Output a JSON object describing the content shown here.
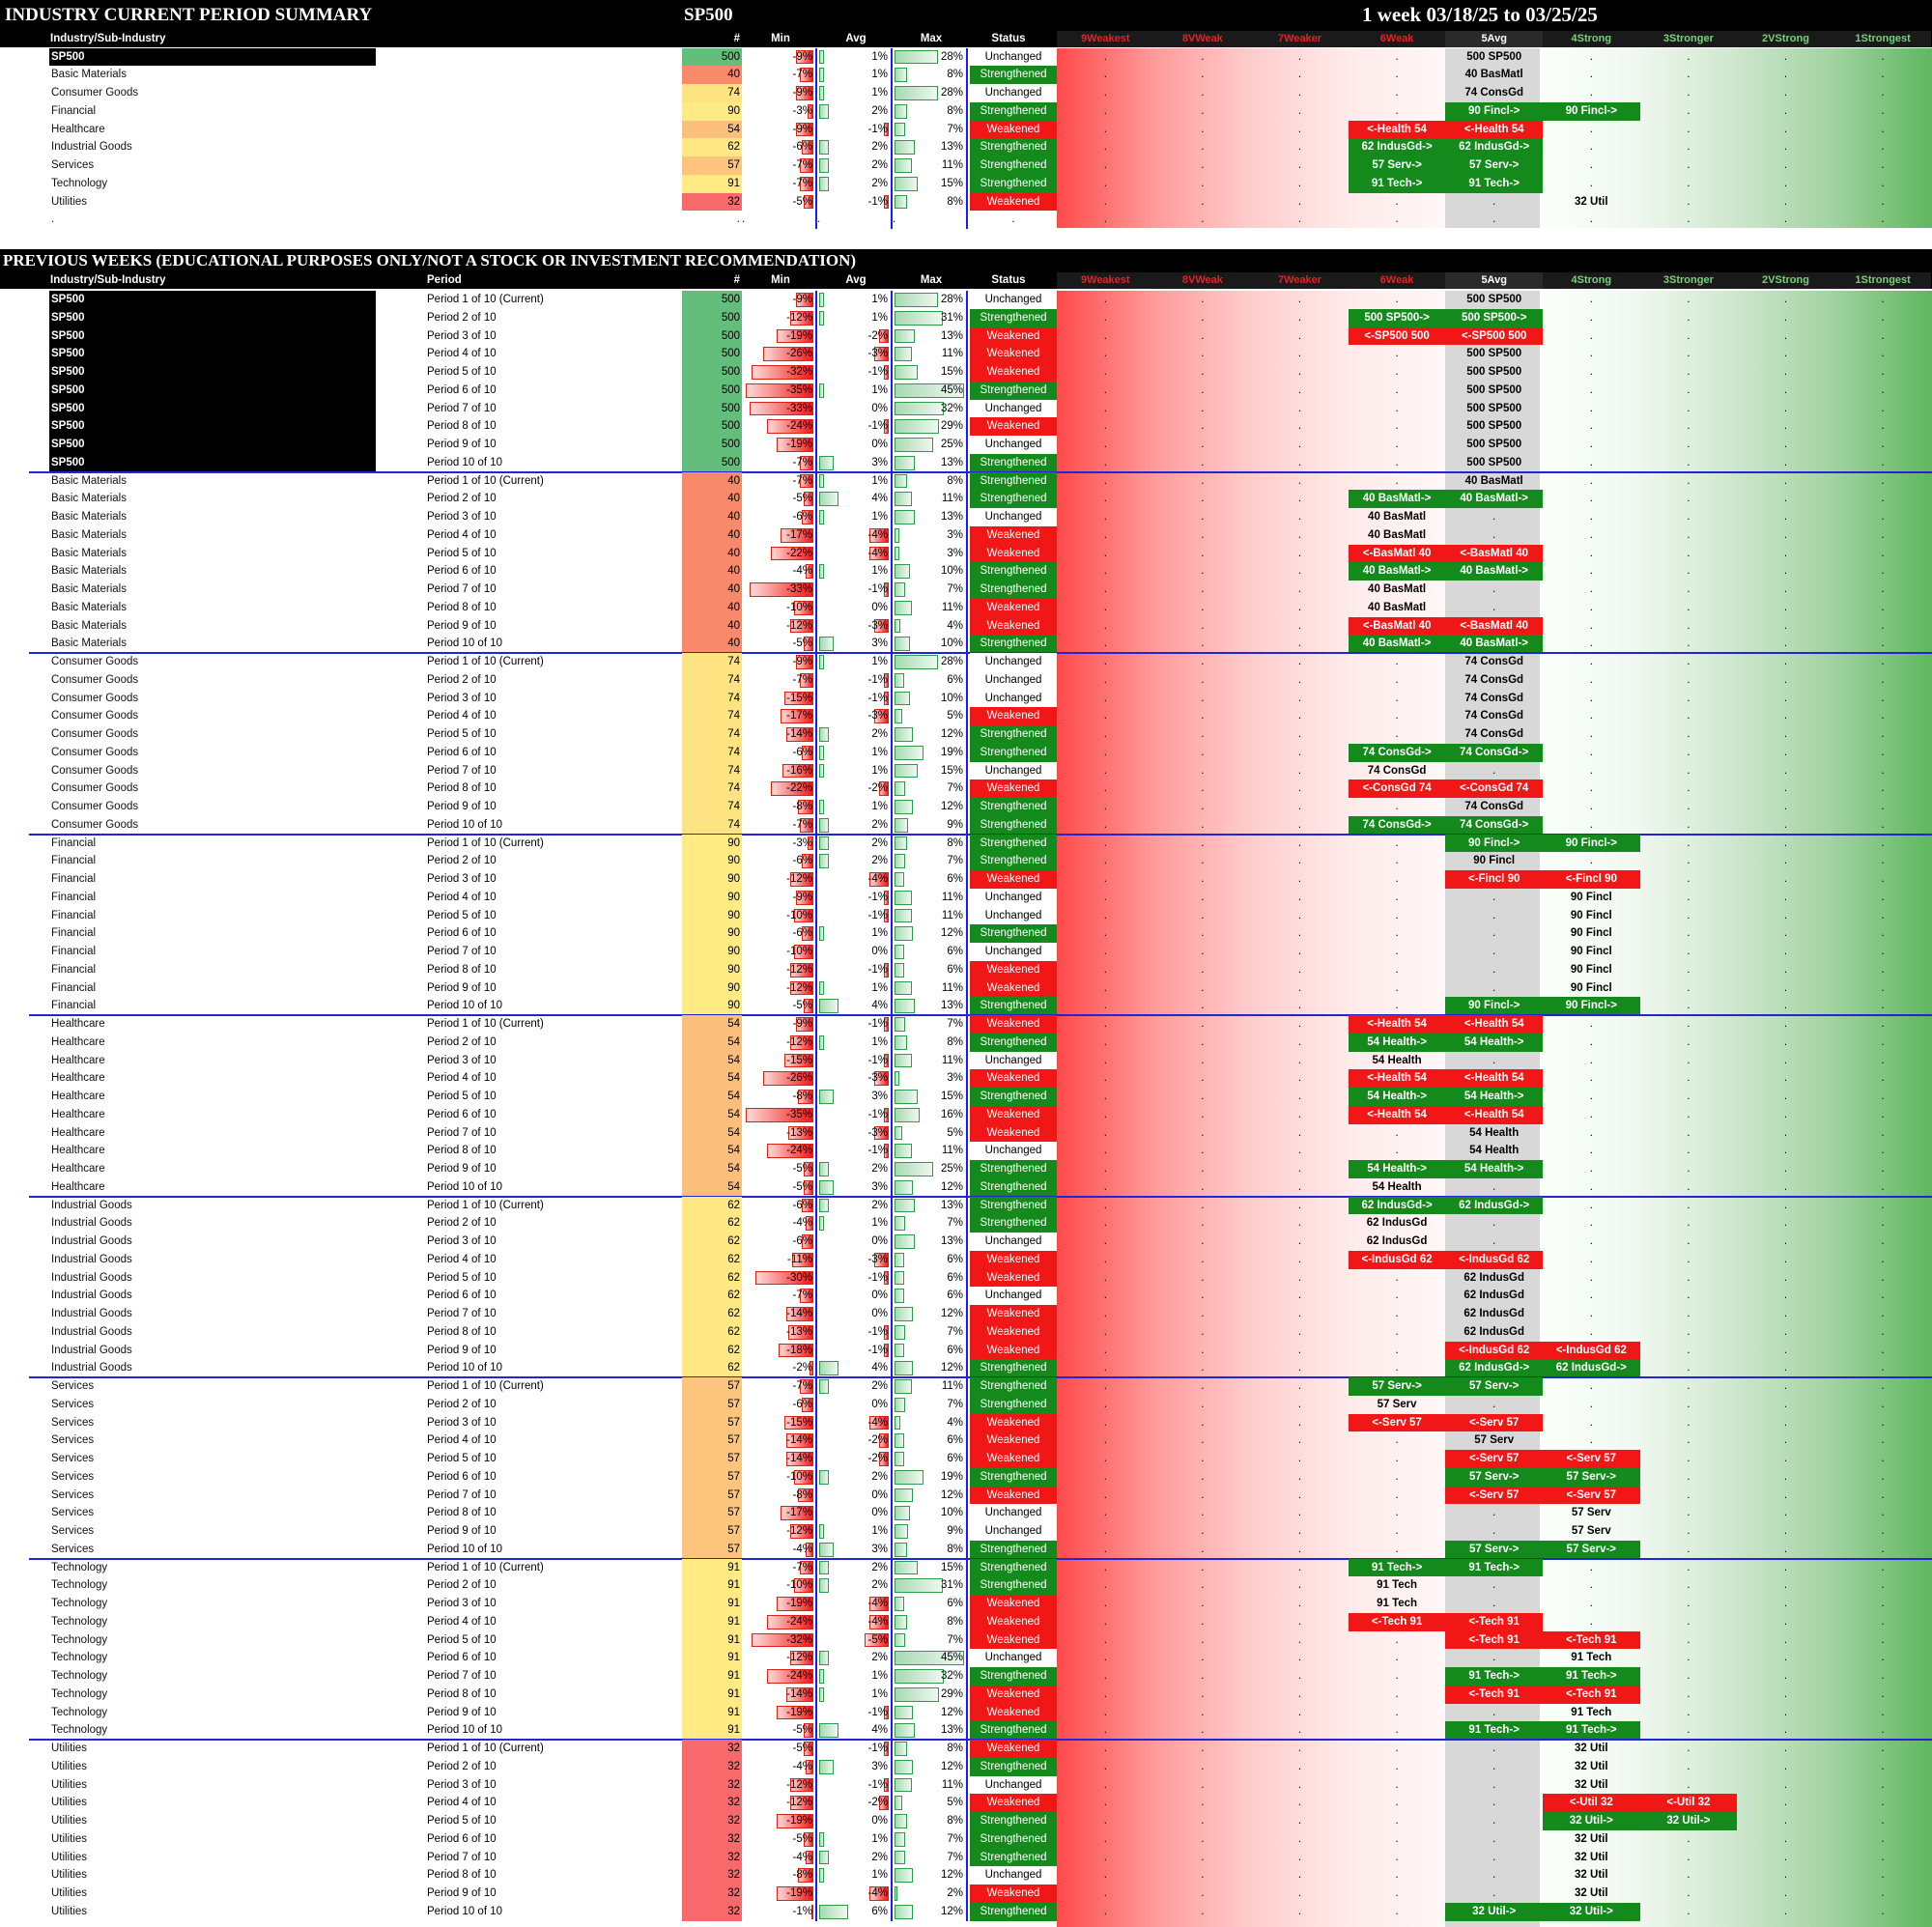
{
  "top": {
    "title": "INDUSTRY CURRENT PERIOD SUMMARY",
    "index": "SP500",
    "range": "1 week 03/18/25 to 03/25/25"
  },
  "previous_title": "PREVIOUS WEEKS (EDUCATIONAL PURPOSES ONLY/NOT A STOCK OR INVESTMENT RECOMMENDATION)",
  "headers": {
    "industry": "Industry/Sub-Industry",
    "period": "Period",
    "count": "#",
    "min": "Min",
    "avg": "Avg",
    "max": "Max",
    "status": "Status",
    "zones": [
      "9Weakest",
      "8VWeak",
      "7Weaker",
      "6Weak",
      "5Avg",
      "4Strong",
      "3Stronger",
      "2VStrong",
      "1Strongest"
    ]
  },
  "colors": {
    "strengthened": "#148a1c",
    "weakened": "#f21717",
    "zone_header": [
      "#e52222",
      "#e52222",
      "#e52222",
      "#e52222",
      "#ffffff",
      "#7ad07a",
      "#7ad07a",
      "#7ad07a",
      "#7ad07a"
    ]
  },
  "summary_rows": [
    [
      "SP500",
      "500",
      "-9%",
      "1%",
      "28%",
      "Unchanged",
      "",
      "500 SP500",
      ""
    ],
    [
      "Basic Materials",
      "40",
      "-7%",
      "1%",
      "8%",
      "Strengthened",
      "",
      "40 BasMatl",
      ""
    ],
    [
      "Consumer Goods",
      "74",
      "-9%",
      "1%",
      "28%",
      "Unchanged",
      "",
      "74 ConsGd",
      ""
    ],
    [
      "Financial",
      "90",
      "-3%",
      "2%",
      "8%",
      "Strengthened",
      "",
      "90 Fincl->",
      "90 Fincl->"
    ],
    [
      "Healthcare",
      "54",
      "-9%",
      "-1%",
      "7%",
      "Weakened",
      "<-Health 54",
      "<-Health 54",
      ""
    ],
    [
      "Industrial Goods",
      "62",
      "-6%",
      "2%",
      "13%",
      "Strengthened",
      "62 IndusGd->",
      "62 IndusGd->",
      ""
    ],
    [
      "Services",
      "57",
      "-7%",
      "2%",
      "11%",
      "Strengthened",
      "57 Serv->",
      "57 Serv->",
      ""
    ],
    [
      "Technology",
      "91",
      "-7%",
      "2%",
      "15%",
      "Strengthened",
      "91 Tech->",
      "91 Tech->",
      ""
    ],
    [
      "Utilities",
      "32",
      "-5%",
      "-1%",
      "8%",
      "Weakened",
      "",
      "",
      "32 Util"
    ]
  ],
  "groups": [
    {
      "name": "SP500",
      "count": "500",
      "rows": [
        [
          "-9%",
          "1%",
          "28%",
          "Unchanged",
          "",
          "500 SP500",
          ""
        ],
        [
          "-12%",
          "1%",
          "31%",
          "Strengthened",
          "500 SP500->",
          "500 SP500->",
          ""
        ],
        [
          "-19%",
          "-2%",
          "13%",
          "Weakened",
          "<-SP500 500",
          "<-SP500 500",
          ""
        ],
        [
          "-26%",
          "-3%",
          "11%",
          "Weakened",
          "",
          "500 SP500",
          ""
        ],
        [
          "-32%",
          "-1%",
          "15%",
          "Weakened",
          "",
          "500 SP500",
          ""
        ],
        [
          "-35%",
          "1%",
          "45%",
          "Strengthened",
          "",
          "500 SP500",
          ""
        ],
        [
          "-33%",
          "0%",
          "32%",
          "Unchanged",
          "",
          "500 SP500",
          ""
        ],
        [
          "-24%",
          "-1%",
          "29%",
          "Weakened",
          "",
          "500 SP500",
          ""
        ],
        [
          "-19%",
          "0%",
          "25%",
          "Unchanged",
          "",
          "500 SP500",
          ""
        ],
        [
          "-7%",
          "3%",
          "13%",
          "Strengthened",
          "",
          "500 SP500",
          ""
        ]
      ]
    },
    {
      "name": "Basic Materials",
      "count": "40",
      "rows": [
        [
          "-7%",
          "1%",
          "8%",
          "Strengthened",
          "",
          "40 BasMatl",
          ""
        ],
        [
          "-5%",
          "4%",
          "11%",
          "Strengthened",
          "40 BasMatl->",
          "40 BasMatl->",
          ""
        ],
        [
          "-6%",
          "1%",
          "13%",
          "Unchanged",
          "40 BasMatl",
          "",
          ""
        ],
        [
          "-17%",
          "-4%",
          "3%",
          "Weakened",
          "40 BasMatl",
          "",
          ""
        ],
        [
          "-22%",
          "-4%",
          "3%",
          "Weakened",
          "<-BasMatl 40",
          "<-BasMatl 40",
          ""
        ],
        [
          "-4%",
          "1%",
          "10%",
          "Strengthened",
          "40 BasMatl->",
          "40 BasMatl->",
          ""
        ],
        [
          "-33%",
          "-1%",
          "7%",
          "Strengthened",
          "40 BasMatl",
          "",
          ""
        ],
        [
          "-10%",
          "0%",
          "11%",
          "Weakened",
          "40 BasMatl",
          "",
          ""
        ],
        [
          "-12%",
          "-3%",
          "4%",
          "Weakened",
          "<-BasMatl 40",
          "<-BasMatl 40",
          ""
        ],
        [
          "-5%",
          "3%",
          "10%",
          "Strengthened",
          "40 BasMatl->",
          "40 BasMatl->",
          ""
        ]
      ]
    },
    {
      "name": "Consumer Goods",
      "count": "74",
      "rows": [
        [
          "-9%",
          "1%",
          "28%",
          "Unchanged",
          "",
          "74 ConsGd",
          ""
        ],
        [
          "-7%",
          "-1%",
          "6%",
          "Unchanged",
          "",
          "74 ConsGd",
          ""
        ],
        [
          "-15%",
          "-1%",
          "10%",
          "Unchanged",
          "",
          "74 ConsGd",
          ""
        ],
        [
          "-17%",
          "-3%",
          "5%",
          "Weakened",
          "",
          "74 ConsGd",
          ""
        ],
        [
          "-14%",
          "2%",
          "12%",
          "Strengthened",
          "",
          "74 ConsGd",
          ""
        ],
        [
          "-6%",
          "1%",
          "19%",
          "Strengthened",
          "74 ConsGd->",
          "74 ConsGd->",
          ""
        ],
        [
          "-16%",
          "1%",
          "15%",
          "Unchanged",
          "74 ConsGd",
          "",
          ""
        ],
        [
          "-22%",
          "-2%",
          "7%",
          "Weakened",
          "<-ConsGd 74",
          "<-ConsGd 74",
          ""
        ],
        [
          "-8%",
          "1%",
          "12%",
          "Strengthened",
          "",
          "74 ConsGd",
          ""
        ],
        [
          "-7%",
          "2%",
          "9%",
          "Strengthened",
          "74 ConsGd->",
          "74 ConsGd->",
          ""
        ]
      ]
    },
    {
      "name": "Financial",
      "count": "90",
      "rows": [
        [
          "-3%",
          "2%",
          "8%",
          "Strengthened",
          "",
          "90 Fincl->",
          "90 Fincl->"
        ],
        [
          "-6%",
          "2%",
          "7%",
          "Strengthened",
          "",
          "90 Fincl",
          ""
        ],
        [
          "-12%",
          "-4%",
          "6%",
          "Weakened",
          "",
          "<-Fincl 90",
          "<-Fincl 90"
        ],
        [
          "-9%",
          "-1%",
          "11%",
          "Unchanged",
          "",
          "",
          "90 Fincl"
        ],
        [
          "-10%",
          "-1%",
          "11%",
          "Unchanged",
          "",
          "",
          "90 Fincl"
        ],
        [
          "-6%",
          "1%",
          "12%",
          "Strengthened",
          "",
          "",
          "90 Fincl"
        ],
        [
          "-10%",
          "0%",
          "6%",
          "Unchanged",
          "",
          "",
          "90 Fincl"
        ],
        [
          "-12%",
          "-1%",
          "6%",
          "Weakened",
          "",
          "",
          "90 Fincl"
        ],
        [
          "-12%",
          "1%",
          "11%",
          "Weakened",
          "",
          "",
          "90 Fincl"
        ],
        [
          "-5%",
          "4%",
          "13%",
          "Strengthened",
          "",
          "90 Fincl->",
          "90 Fincl->"
        ]
      ]
    },
    {
      "name": "Healthcare",
      "count": "54",
      "rows": [
        [
          "-9%",
          "-1%",
          "7%",
          "Weakened",
          "<-Health 54",
          "<-Health 54",
          ""
        ],
        [
          "-12%",
          "1%",
          "8%",
          "Strengthened",
          "54 Health->",
          "54 Health->",
          ""
        ],
        [
          "-15%",
          "-1%",
          "11%",
          "Unchanged",
          "54 Health",
          "",
          ""
        ],
        [
          "-26%",
          "-3%",
          "3%",
          "Weakened",
          "<-Health 54",
          "<-Health 54",
          ""
        ],
        [
          "-8%",
          "3%",
          "15%",
          "Strengthened",
          "54 Health->",
          "54 Health->",
          ""
        ],
        [
          "-35%",
          "-1%",
          "16%",
          "Weakened",
          "<-Health 54",
          "<-Health 54",
          ""
        ],
        [
          "-13%",
          "-3%",
          "5%",
          "Weakened",
          "",
          "54 Health",
          ""
        ],
        [
          "-24%",
          "-1%",
          "11%",
          "Unchanged",
          "",
          "54 Health",
          ""
        ],
        [
          "-5%",
          "2%",
          "25%",
          "Strengthened",
          "54 Health->",
          "54 Health->",
          ""
        ],
        [
          "-5%",
          "3%",
          "12%",
          "Strengthened",
          "54 Health",
          "",
          ""
        ]
      ]
    },
    {
      "name": "Industrial Goods",
      "count": "62",
      "rows": [
        [
          "-6%",
          "2%",
          "13%",
          "Strengthened",
          "62 IndusGd->",
          "62 IndusGd->",
          ""
        ],
        [
          "-4%",
          "1%",
          "7%",
          "Strengthened",
          "62 IndusGd",
          "",
          ""
        ],
        [
          "-6%",
          "0%",
          "13%",
          "Unchanged",
          "62 IndusGd",
          "",
          ""
        ],
        [
          "-11%",
          "-3%",
          "6%",
          "Weakened",
          "<-IndusGd 62",
          "<-IndusGd 62",
          ""
        ],
        [
          "-30%",
          "-1%",
          "6%",
          "Weakened",
          "",
          "62 IndusGd",
          ""
        ],
        [
          "-7%",
          "0%",
          "6%",
          "Unchanged",
          "",
          "62 IndusGd",
          ""
        ],
        [
          "-14%",
          "0%",
          "12%",
          "Weakened",
          "",
          "62 IndusGd",
          ""
        ],
        [
          "-13%",
          "-1%",
          "7%",
          "Weakened",
          "",
          "62 IndusGd",
          ""
        ],
        [
          "-18%",
          "-1%",
          "6%",
          "Weakened",
          "",
          "<-IndusGd 62",
          "<-IndusGd 62"
        ],
        [
          "-2%",
          "4%",
          "12%",
          "Strengthened",
          "",
          "62 IndusGd->",
          "62 IndusGd->"
        ]
      ]
    },
    {
      "name": "Services",
      "count": "57",
      "rows": [
        [
          "-7%",
          "2%",
          "11%",
          "Strengthened",
          "57 Serv->",
          "57 Serv->",
          ""
        ],
        [
          "-6%",
          "0%",
          "7%",
          "Strengthened",
          "57 Serv",
          "",
          ""
        ],
        [
          "-15%",
          "-4%",
          "4%",
          "Weakened",
          "<-Serv 57",
          "<-Serv 57",
          ""
        ],
        [
          "-14%",
          "-2%",
          "6%",
          "Weakened",
          "",
          "57 Serv",
          ""
        ],
        [
          "-14%",
          "-2%",
          "6%",
          "Weakened",
          "",
          "<-Serv 57",
          "<-Serv 57"
        ],
        [
          "-10%",
          "2%",
          "19%",
          "Strengthened",
          "",
          "57 Serv->",
          "57 Serv->"
        ],
        [
          "-8%",
          "0%",
          "12%",
          "Weakened",
          "",
          "<-Serv 57",
          "<-Serv 57"
        ],
        [
          "-17%",
          "0%",
          "10%",
          "Unchanged",
          "",
          "",
          "57 Serv"
        ],
        [
          "-12%",
          "1%",
          "9%",
          "Unchanged",
          "",
          "",
          "57 Serv"
        ],
        [
          "-4%",
          "3%",
          "8%",
          "Strengthened",
          "",
          "57 Serv->",
          "57 Serv->"
        ]
      ]
    },
    {
      "name": "Technology",
      "count": "91",
      "rows": [
        [
          "-7%",
          "2%",
          "15%",
          "Strengthened",
          "91 Tech->",
          "91 Tech->",
          ""
        ],
        [
          "-10%",
          "2%",
          "31%",
          "Strengthened",
          "91 Tech",
          "",
          ""
        ],
        [
          "-19%",
          "-4%",
          "6%",
          "Weakened",
          "91 Tech",
          "",
          ""
        ],
        [
          "-24%",
          "-4%",
          "8%",
          "Weakened",
          "<-Tech 91",
          "<-Tech 91",
          ""
        ],
        [
          "-32%",
          "-5%",
          "7%",
          "Weakened",
          "",
          "<-Tech 91",
          "<-Tech 91"
        ],
        [
          "-12%",
          "2%",
          "45%",
          "Unchanged",
          "",
          "",
          "91 Tech"
        ],
        [
          "-24%",
          "1%",
          "32%",
          "Strengthened",
          "",
          "91 Tech->",
          "91 Tech->"
        ],
        [
          "-14%",
          "1%",
          "29%",
          "Weakened",
          "",
          "<-Tech 91",
          "<-Tech 91"
        ],
        [
          "-19%",
          "-1%",
          "12%",
          "Weakened",
          "",
          "",
          "91 Tech"
        ],
        [
          "-5%",
          "4%",
          "13%",
          "Strengthened",
          "",
          "91 Tech->",
          "91 Tech->"
        ]
      ]
    },
    {
      "name": "Utilities",
      "count": "32",
      "rows": [
        [
          "-5%",
          "-1%",
          "8%",
          "Weakened",
          "",
          "",
          "32 Util",
          ""
        ],
        [
          "-4%",
          "3%",
          "12%",
          "Strengthened",
          "",
          "",
          "32 Util",
          ""
        ],
        [
          "-12%",
          "-1%",
          "11%",
          "Unchanged",
          "",
          "",
          "32 Util",
          ""
        ],
        [
          "-12%",
          "-2%",
          "5%",
          "Weakened",
          "",
          "",
          "<-Util 32",
          "<-Util 32"
        ],
        [
          "-19%",
          "0%",
          "8%",
          "Strengthened",
          "",
          "",
          "32 Util->",
          "32 Util->"
        ],
        [
          "-5%",
          "1%",
          "7%",
          "Strengthened",
          "",
          "",
          "32 Util",
          ""
        ],
        [
          "-4%",
          "2%",
          "7%",
          "Strengthened",
          "",
          "",
          "32 Util",
          ""
        ],
        [
          "-8%",
          "1%",
          "12%",
          "Unchanged",
          "",
          "",
          "32 Util",
          ""
        ],
        [
          "-19%",
          "-4%",
          "2%",
          "Weakened",
          "",
          "",
          "32 Util",
          ""
        ],
        [
          "-1%",
          "6%",
          "12%",
          "Strengthened",
          "",
          "32 Util->",
          "32 Util->",
          ""
        ]
      ]
    }
  ],
  "period_labels": [
    "Period 1 of 10 (Current)",
    "Period 2 of 10",
    "Period 3 of 10",
    "Period 4 of 10",
    "Period 5 of 10",
    "Period 6 of 10",
    "Period 7 of 10",
    "Period 8 of 10",
    "Period 9 of 10",
    "Period 10 of 10"
  ],
  "group_colors": {
    "SP500": "#63be7b",
    "Basic Materials": "#f8896b",
    "Consumer Goods": "#fee382",
    "Financial": "#ffeb84",
    "Healthcare": "#fcbf7b",
    "Industrial Goods": "#fee883",
    "Services": "#fcc47c",
    "Technology": "#ffea84",
    "Utilities": "#f8696b"
  },
  "dot": "."
}
